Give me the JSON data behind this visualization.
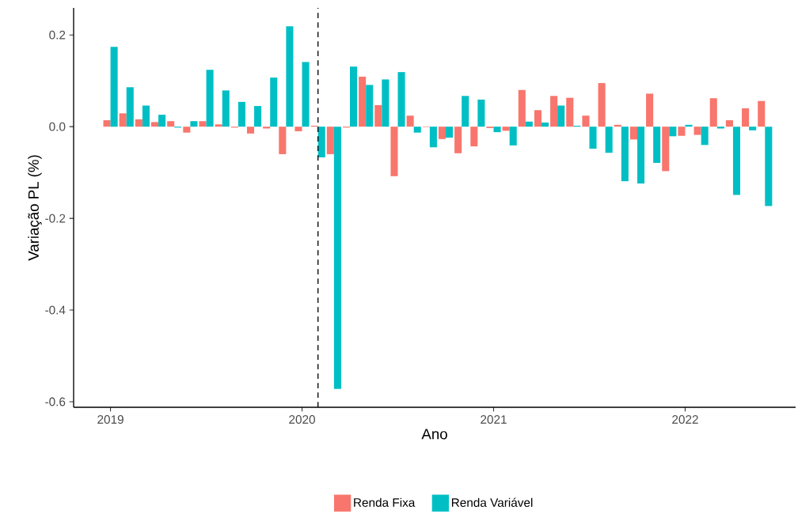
{
  "chart_data": {
    "type": "bar",
    "xlabel": "Ano",
    "ylabel": "Variação PL (%)",
    "x": [
      "2019-01",
      "2019-02",
      "2019-03",
      "2019-04",
      "2019-05",
      "2019-06",
      "2019-07",
      "2019-08",
      "2019-09",
      "2019-10",
      "2019-11",
      "2019-12",
      "2020-01",
      "2020-02",
      "2020-03",
      "2020-04",
      "2020-05",
      "2020-06",
      "2020-07",
      "2020-08",
      "2020-09",
      "2020-10",
      "2020-11",
      "2020-12",
      "2021-01",
      "2021-02",
      "2021-03",
      "2021-04",
      "2021-05",
      "2021-06",
      "2021-07",
      "2021-08",
      "2021-09",
      "2021-10",
      "2021-11",
      "2021-12",
      "2022-01",
      "2022-02",
      "2022-03",
      "2022-04",
      "2022-05",
      "2022-06"
    ],
    "series": [
      {
        "name": "Renda Fixa",
        "color": "#f8766d",
        "values": [
          0.014,
          0.029,
          0.016,
          0.01,
          0.012,
          -0.013,
          0.012,
          0.005,
          -0.002,
          -0.015,
          -0.004,
          -0.06,
          -0.01,
          0.002,
          -0.06,
          -0.002,
          0.109,
          0.047,
          -0.108,
          0.024,
          -0.001,
          -0.027,
          -0.058,
          -0.043,
          -0.003,
          -0.009,
          0.08,
          0.036,
          0.067,
          0.063,
          0.024,
          0.095,
          0.004,
          -0.028,
          0.072,
          -0.097,
          -0.02,
          -0.018,
          0.062,
          0.014,
          0.04,
          0.056
        ]
      },
      {
        "name": "Renda Variável",
        "color": "#00bfc4",
        "values": [
          0.174,
          0.086,
          0.046,
          0.026,
          -0.002,
          0.012,
          0.124,
          0.079,
          0.054,
          0.045,
          0.107,
          0.219,
          0.141,
          -0.067,
          -0.572,
          0.131,
          0.091,
          0.103,
          0.119,
          -0.013,
          -0.045,
          -0.024,
          0.067,
          0.059,
          -0.012,
          -0.041,
          0.011,
          0.009,
          0.046,
          0.002,
          -0.048,
          -0.057,
          -0.119,
          -0.124,
          -0.079,
          -0.021,
          0.004,
          -0.04,
          -0.004,
          -0.149,
          -0.008,
          -0.173
        ]
      }
    ],
    "xlim": [
      "2018-10-22",
      "2022-07-29"
    ],
    "xticks": [
      "2019",
      "2020",
      "2021",
      "2022"
    ],
    "ylim": [
      -0.612,
      0.259
    ],
    "yticks": [
      -0.6,
      -0.4,
      -0.2,
      {
        "value": 0,
        "label": "0.0"
      },
      0.2
    ],
    "ref_lines": [
      {
        "axis": "x",
        "value": "2020-02-01",
        "color": "#000000",
        "line_style": "dashed"
      }
    ],
    "grid": false,
    "legend": "bottom"
  }
}
